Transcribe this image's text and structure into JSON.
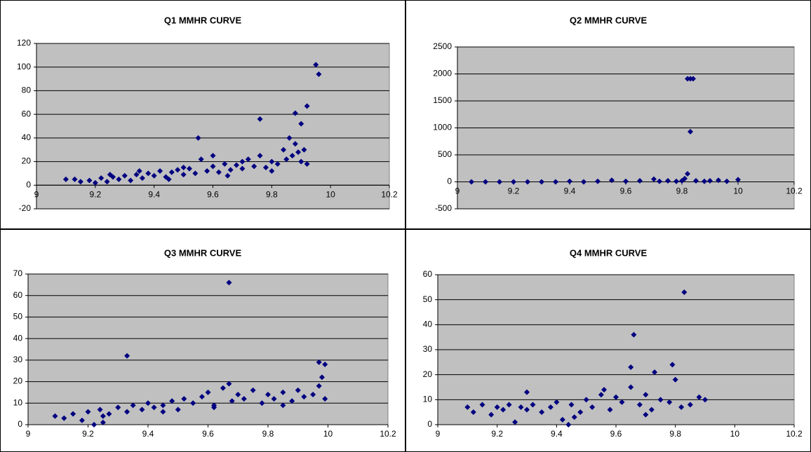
{
  "chart_data": [
    {
      "type": "scatter",
      "title": "Q1 MMHR CURVE",
      "color": "#000080",
      "x": [
        9.1,
        9.13,
        9.15,
        9.18,
        9.2,
        9.22,
        9.24,
        9.26,
        9.28,
        9.3,
        9.32,
        9.34,
        9.36,
        9.38,
        9.4,
        9.42,
        9.44,
        9.46,
        9.48,
        9.5,
        9.52,
        9.54,
        9.55,
        9.56,
        9.58,
        9.6,
        9.62,
        9.64,
        9.66,
        9.68,
        9.7,
        9.72,
        9.74,
        9.76,
        9.76,
        9.78,
        9.8,
        9.82,
        9.84,
        9.85,
        9.86,
        9.87,
        9.88,
        9.88,
        9.89,
        9.9,
        9.9,
        9.91,
        9.92,
        9.92,
        9.95,
        9.96,
        9.5,
        9.6,
        9.7,
        9.8,
        9.65,
        9.45,
        9.35,
        9.25
      ],
      "values": [
        5,
        5,
        3,
        4,
        2,
        6,
        3,
        7,
        5,
        8,
        4,
        9,
        6,
        10,
        8,
        12,
        7,
        11,
        13,
        9,
        14,
        10,
        40,
        22,
        12,
        16,
        11,
        18,
        13,
        17,
        14,
        22,
        16,
        56,
        25,
        15,
        20,
        18,
        30,
        22,
        40,
        25,
        61,
        35,
        28,
        52,
        20,
        30,
        67,
        18,
        102,
        94,
        15,
        25,
        20,
        12,
        8,
        5,
        12,
        9
      ],
      "xlim": [
        9,
        10.2
      ],
      "xticks": [
        9,
        9.2,
        9.4,
        9.6,
        9.8,
        10,
        10.2
      ],
      "ylim": [
        -20,
        120
      ],
      "yticks": [
        -20,
        0,
        20,
        40,
        60,
        80,
        100,
        120
      ],
      "grid": true
    },
    {
      "type": "scatter",
      "title": "Q2 MMHR CURVE",
      "color": "#000080",
      "x": [
        9.05,
        9.1,
        9.15,
        9.2,
        9.25,
        9.3,
        9.35,
        9.4,
        9.45,
        9.5,
        9.55,
        9.6,
        9.65,
        9.7,
        9.72,
        9.75,
        9.78,
        9.8,
        9.81,
        9.82,
        9.82,
        9.83,
        9.83,
        9.84,
        9.85,
        9.88,
        9.9,
        9.93,
        9.96,
        10.0
      ],
      "values": [
        0,
        0,
        0,
        0,
        0,
        0,
        0,
        10,
        0,
        10,
        30,
        10,
        20,
        50,
        10,
        20,
        10,
        20,
        60,
        150,
        1910,
        1910,
        930,
        1910,
        20,
        10,
        20,
        30,
        10,
        40
      ],
      "xlim": [
        9,
        10.2
      ],
      "xticks": [
        9,
        9.2,
        9.4,
        9.6,
        9.8,
        10,
        10.2
      ],
      "ylim": [
        -500,
        2500
      ],
      "yticks": [
        -500,
        0,
        500,
        1000,
        1500,
        2000,
        2500
      ],
      "grid": true
    },
    {
      "type": "scatter",
      "title": "Q3 MMHR CURVE",
      "color": "#000080",
      "x": [
        9.09,
        9.12,
        9.15,
        9.18,
        9.2,
        9.22,
        9.24,
        9.25,
        9.27,
        9.3,
        9.33,
        9.33,
        9.35,
        9.38,
        9.4,
        9.42,
        9.45,
        9.48,
        9.5,
        9.52,
        9.55,
        9.58,
        9.6,
        9.62,
        9.65,
        9.67,
        9.67,
        9.68,
        9.7,
        9.72,
        9.75,
        9.78,
        9.8,
        9.82,
        9.85,
        9.88,
        9.9,
        9.92,
        9.95,
        9.97,
        9.97,
        9.98,
        9.99,
        9.99,
        9.25,
        9.45,
        9.62,
        9.85
      ],
      "values": [
        4,
        3,
        5,
        2,
        6,
        0,
        7,
        1,
        5,
        8,
        32,
        6,
        9,
        7,
        10,
        8,
        9,
        11,
        7,
        12,
        10,
        13,
        15,
        9,
        17,
        66,
        19,
        11,
        14,
        12,
        16,
        10,
        14,
        12,
        15,
        11,
        16,
        13,
        14,
        29,
        18,
        22,
        28,
        12,
        4,
        6,
        8,
        9
      ],
      "xlim": [
        9,
        10.2
      ],
      "xticks": [
        9,
        9.2,
        9.4,
        9.6,
        9.8,
        10,
        10.2
      ],
      "ylim": [
        0,
        70
      ],
      "yticks": [
        0,
        10,
        20,
        30,
        40,
        50,
        60,
        70
      ],
      "grid": true
    },
    {
      "type": "scatter",
      "title": "Q4 MMHR CURVE",
      "color": "#000080",
      "x": [
        9.1,
        9.12,
        9.15,
        9.18,
        9.2,
        9.22,
        9.24,
        9.26,
        9.28,
        9.3,
        9.32,
        9.35,
        9.38,
        9.4,
        9.42,
        9.45,
        9.48,
        9.5,
        9.52,
        9.55,
        9.58,
        9.6,
        9.62,
        9.65,
        9.66,
        9.65,
        9.68,
        9.7,
        9.72,
        9.73,
        9.75,
        9.78,
        9.79,
        9.8,
        9.83,
        9.85,
        9.88,
        9.9,
        9.44,
        9.46,
        9.56,
        9.7,
        9.82,
        9.3
      ],
      "values": [
        7,
        5,
        8,
        4,
        7,
        6,
        8,
        1,
        7,
        6,
        8,
        5,
        7,
        9,
        2,
        8,
        5,
        10,
        7,
        12,
        6,
        11,
        9,
        23,
        36,
        15,
        8,
        12,
        6,
        21,
        10,
        9,
        24,
        18,
        53,
        8,
        11,
        10,
        0,
        3,
        14,
        4,
        7,
        13
      ],
      "xlim": [
        9,
        10.2
      ],
      "xticks": [
        9,
        9.2,
        9.4,
        9.6,
        9.8,
        10,
        10.2
      ],
      "ylim": [
        0,
        60
      ],
      "yticks": [
        0,
        10,
        20,
        30,
        40,
        50,
        60
      ],
      "grid": true
    }
  ]
}
